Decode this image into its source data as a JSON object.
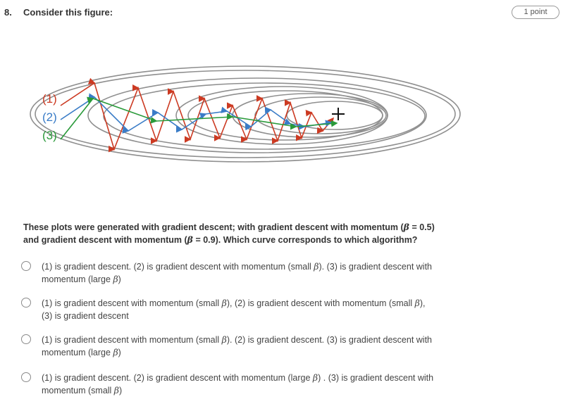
{
  "question": {
    "number": "8.",
    "title": "Consider this figure:",
    "points": "1 point",
    "prompt_line1": "These plots were generated with gradient descent; with gradient descent with momentum (",
    "prompt_beta1": "β",
    "prompt_line1b": " = 0.5)",
    "prompt_line2": "and gradient descent with momentum (",
    "prompt_beta2": "β",
    "prompt_line2b": " = 0.9). Which curve corresponds to which algorithm?"
  },
  "figure": {
    "labels": [
      "(1)",
      "(2)",
      "(3)"
    ],
    "colors": {
      "curve1": "#cc3a22",
      "curve2": "#3a7cc7",
      "curve3": "#2a9a3a",
      "contours": "#8f8f8f",
      "target": "#111111"
    },
    "target_icon": "plus-icon"
  },
  "options": [
    {
      "a": "(1) is gradient descent. (2) is gradient descent with momentum (small ",
      "b1": "β",
      "c": "). (3) is gradient descent with",
      "d": "momentum (large ",
      "b2": "β",
      "e": ")"
    },
    {
      "a": "(1) is gradient descent with momentum (small ",
      "b1": "β",
      "c": "), (2) is gradient descent with momentum (small ",
      "b2": "β",
      "d": "),",
      "e": "(3) is gradient descent"
    },
    {
      "a": "(1) is gradient descent with momentum (small ",
      "b1": "β",
      "c": "). (2) is gradient descent. (3) is gradient descent with",
      "d": "momentum (large ",
      "b2": "β",
      "e": ")"
    },
    {
      "a": "(1) is gradient descent. (2) is gradient descent with momentum (large ",
      "b1": "β",
      "c": ") . (3) is gradient descent with",
      "d": "momentum (small ",
      "b2": "β",
      "e": ")"
    }
  ]
}
